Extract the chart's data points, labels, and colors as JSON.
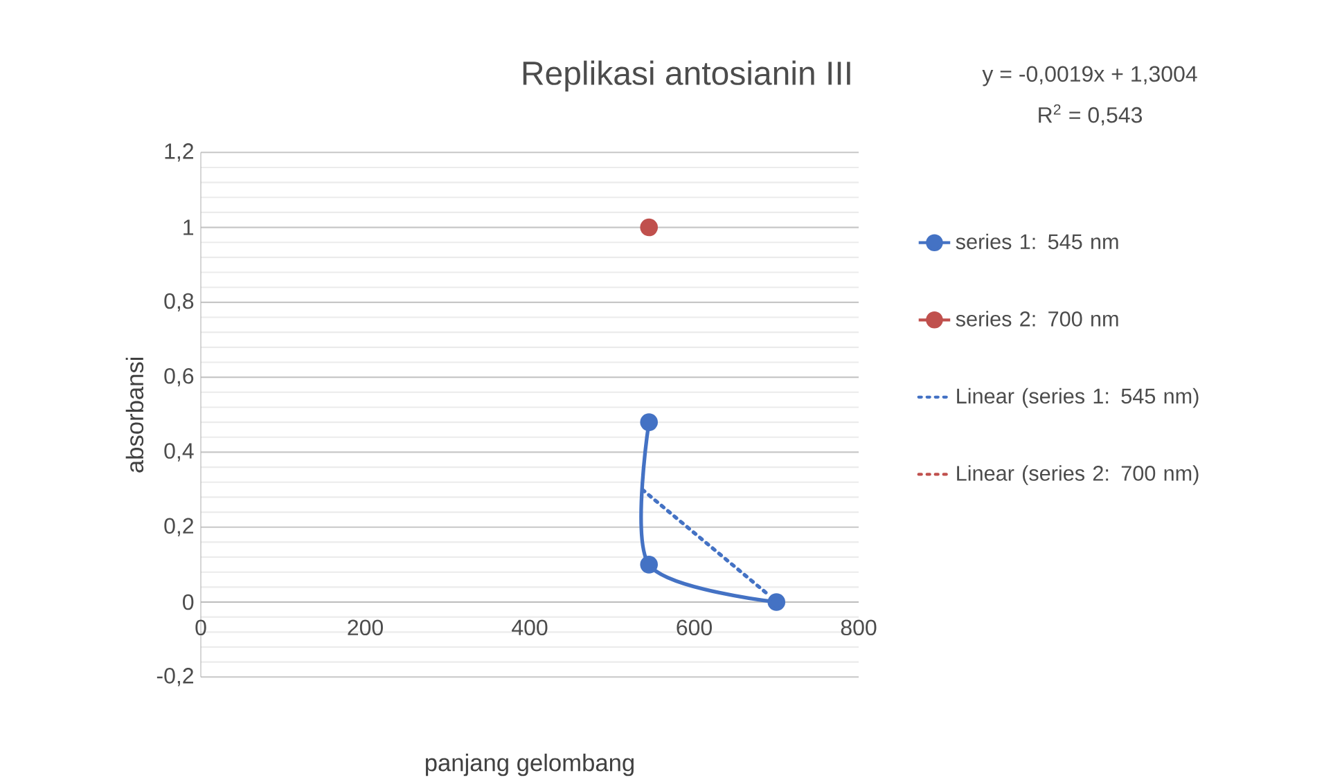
{
  "chart_data": {
    "type": "line",
    "title": "Replikasi antosianin III",
    "xlabel": "panjang gelombang",
    "ylabel": "absorbansi",
    "annotations": [
      "y = -0,0019x + 1,3004",
      "R$^{2}$ = 0,543"
    ],
    "xlim": [
      0,
      800
    ],
    "xticks": [
      0,
      200,
      400,
      600,
      800
    ],
    "ylim": [
      -0.2,
      1.2
    ],
    "yticks": [
      {
        "value": -0.2,
        "label": "-0,2"
      },
      0,
      {
        "value": 0.2,
        "label": "0,2"
      },
      {
        "value": 0.4,
        "label": "0,4"
      },
      {
        "value": 0.6,
        "label": "0,6"
      },
      {
        "value": 0.8,
        "label": "0,8"
      },
      1,
      {
        "value": 1.2,
        "label": "1,2"
      }
    ],
    "grid": "y",
    "legend": "right",
    "marker": "circle",
    "line_style": "solid",
    "series": [
      {
        "name": "series 1: 545 nm",
        "color": "#4472c4",
        "x": [
          545,
          545,
          700
        ],
        "values": [
          0.48,
          0.1,
          0
        ]
      },
      {
        "name": "series 2: 700 nm",
        "color": "#c0504d",
        "x": [
          545
        ],
        "values": [
          1.0
        ]
      },
      {
        "name": "Linear (series 1: 545 nm)",
        "color": "#4472c4",
        "line_style": "dotted",
        "marker": "none",
        "x": [
          537,
          690
        ],
        "values": [
          0.3,
          0.02
        ]
      },
      {
        "name": "Linear (series 2: 700 nm)",
        "color": "#c0504d",
        "line_style": "dotted",
        "marker": "none"
      }
    ]
  }
}
